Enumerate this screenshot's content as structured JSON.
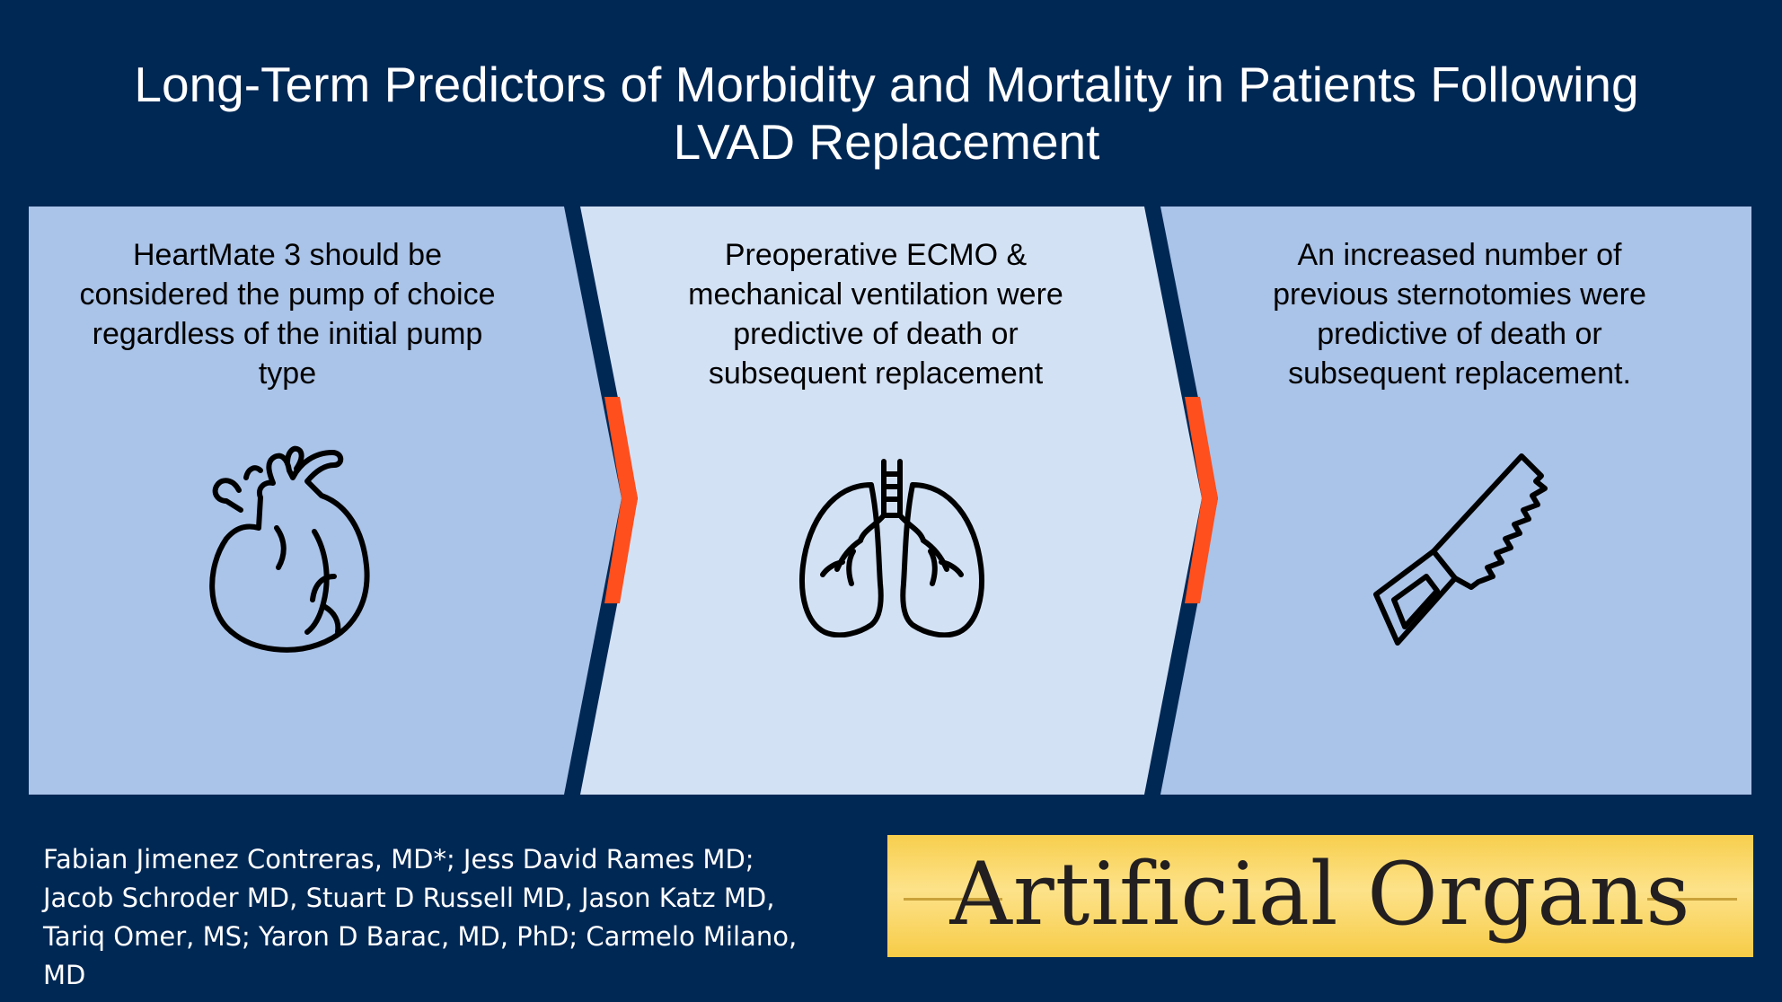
{
  "title": {
    "line1": "Long-Term Predictors of Morbidity and Mortality in Patients Following",
    "line2": "LVAD Replacement"
  },
  "panels": [
    {
      "lines": [
        "HeartMate 3 should be",
        "considered the pump of choice",
        "regardless of the initial pump",
        "type"
      ],
      "icon": "heart-icon"
    },
    {
      "lines": [
        "Preoperative ECMO &",
        "mechanical ventilation were",
        "predictive of death or",
        "subsequent replacement"
      ],
      "icon": "lungs-icon"
    },
    {
      "lines": [
        "An increased number of",
        "previous sternotomies were",
        "predictive of death or",
        "subsequent replacement."
      ],
      "icon": "saw-icon"
    }
  ],
  "authors": {
    "lines": [
      "Fabian Jimenez Contreras, MD*; Jess David Rames MD;",
      "Jacob Schroder MD, Stuart D Russell MD, Jason Katz MD,",
      "Tariq Omer, MS; Yaron D Barac, MD, PhD; Carmelo Milano,",
      "MD"
    ]
  },
  "journal": {
    "name": "Artificial Organs"
  },
  "colors": {
    "background": "#002855",
    "panel_dark": "#aac3e8",
    "panel_light": "#d3e1f5",
    "accent": "#ff4f1c",
    "journal_bg": "#f7cf4d"
  }
}
